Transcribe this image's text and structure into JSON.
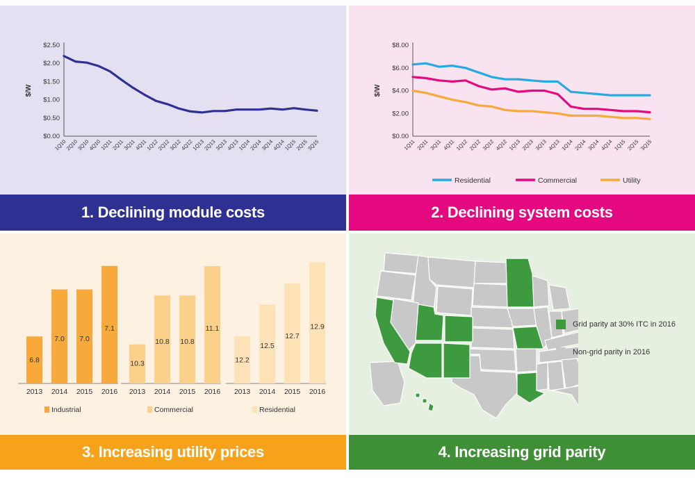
{
  "panels": {
    "p1": {
      "title": "1. Declining module costs"
    },
    "p2": {
      "title": "2. Declining system costs"
    },
    "p3": {
      "title": "3. Increasing utility prices"
    },
    "p4": {
      "title": "4. Increasing grid parity"
    }
  },
  "colors": {
    "p1_bg": "#e4e0f1",
    "p1_banner": "#2e3192",
    "p1_line": "#2e3192",
    "p2_bg": "#fae3f0",
    "p2_banner": "#e5097f",
    "p3_bg": "#fdf1e1",
    "p3_banner": "#f7a21b",
    "p4_bg": "#e6f0e0",
    "p4_banner": "#3e8f36",
    "residential": "#27aae1",
    "commercial": "#e5097f",
    "utility": "#f7a93b",
    "industrial_bar": "#f7a93b",
    "commercial_bar": "#fbd08a",
    "residential_bar": "#fde2b8",
    "parity_green": "#3e9a3f",
    "non_parity_gray": "#c8c8c8"
  },
  "chart_data": [
    {
      "type": "line",
      "title": "",
      "ylabel": "$/W",
      "xlabel": "",
      "ylim": [
        0,
        2.5
      ],
      "yticks": [
        "$0.00",
        "$0.50",
        "$1.00",
        "$1.50",
        "$2.00",
        "$2.50"
      ],
      "yticks_values": [
        0,
        0.5,
        1.0,
        1.5,
        2.0,
        2.5
      ],
      "x": [
        "1Q10",
        "2Q10",
        "3Q10",
        "4Q10",
        "1Q11",
        "2Q11",
        "3Q11",
        "4Q11",
        "1Q12",
        "2Q12",
        "3Q12",
        "4Q12",
        "1Q13",
        "2Q13",
        "3Q13",
        "4Q13",
        "1Q14",
        "2Q14",
        "3Q14",
        "4Q14",
        "1Q15",
        "2Q15",
        "3Q15"
      ],
      "series": [
        {
          "values": [
            2.2,
            2.05,
            2.02,
            1.93,
            1.78,
            1.55,
            1.33,
            1.14,
            0.97,
            0.88,
            0.76,
            0.68,
            0.65,
            0.69,
            0.69,
            0.73,
            0.73,
            0.73,
            0.76,
            0.73,
            0.77,
            0.73,
            0.7
          ]
        }
      ],
      "grid": false
    },
    {
      "type": "line",
      "title": "",
      "ylabel": "$/W",
      "xlabel": "",
      "ylim": [
        0,
        8
      ],
      "yticks": [
        "$0.00",
        "$2.00",
        "$4.00",
        "$6.00",
        "$8.00"
      ],
      "yticks_values": [
        0,
        2,
        4,
        6,
        8
      ],
      "x": [
        "1Q11",
        "2Q11",
        "3Q11",
        "4Q11",
        "1Q12",
        "2Q12",
        "3Q12",
        "4Q12",
        "1Q13",
        "2Q13",
        "3Q13",
        "4Q13",
        "1Q14",
        "2Q14",
        "3Q14",
        "4Q14",
        "1Q15",
        "2Q15",
        "3Q15"
      ],
      "series": [
        {
          "name": "Residential",
          "values": [
            6.3,
            6.4,
            6.1,
            6.2,
            6.0,
            5.6,
            5.2,
            5.0,
            5.0,
            4.9,
            4.8,
            4.8,
            3.9,
            3.8,
            3.7,
            3.6,
            3.6,
            3.6,
            3.6
          ]
        },
        {
          "name": "Commercial",
          "values": [
            5.2,
            5.1,
            4.9,
            4.8,
            4.9,
            4.4,
            4.1,
            4.2,
            3.9,
            4.0,
            4.0,
            3.7,
            2.6,
            2.4,
            2.4,
            2.3,
            2.2,
            2.2,
            2.1
          ]
        },
        {
          "name": "Utility",
          "values": [
            4.0,
            3.8,
            3.5,
            3.2,
            3.0,
            2.7,
            2.6,
            2.3,
            2.2,
            2.2,
            2.1,
            2.0,
            1.8,
            1.8,
            1.8,
            1.7,
            1.6,
            1.6,
            1.5
          ]
        }
      ],
      "legend": "bottom",
      "grid": false
    },
    {
      "type": "bar",
      "title": "",
      "groups": [
        {
          "name": "Industrial",
          "categories": [
            "2013",
            "2014",
            "2015",
            "2016"
          ],
          "values": [
            6.8,
            7.0,
            7.0,
            7.1
          ],
          "value_labels": [
            "6.8",
            "7.0",
            "7.0",
            "7.1"
          ],
          "ylim": [
            6.6,
            7.12
          ]
        },
        {
          "name": "Commercial",
          "categories": [
            "2013",
            "2014",
            "2015",
            "2016"
          ],
          "values": [
            10.3,
            10.8,
            10.8,
            11.1
          ],
          "value_labels": [
            "10.3",
            "10.8",
            "10.8",
            "11.1"
          ],
          "ylim": [
            9.9,
            11.15
          ]
        },
        {
          "name": "Residential",
          "categories": [
            "2013",
            "2014",
            "2015",
            "2016"
          ],
          "values": [
            12.2,
            12.5,
            12.7,
            12.9
          ],
          "value_labels": [
            "12.2",
            "12.5",
            "12.7",
            "12.9"
          ],
          "ylim": [
            11.75,
            12.91
          ]
        }
      ],
      "legend": "bottom",
      "grid": false
    }
  ],
  "map": {
    "legend": [
      {
        "label": "Grid parity at 30% ITC in 2016",
        "color_key": "parity_green"
      },
      {
        "label": "Non-grid parity in 2016",
        "color_key": "non_parity_gray"
      }
    ]
  }
}
